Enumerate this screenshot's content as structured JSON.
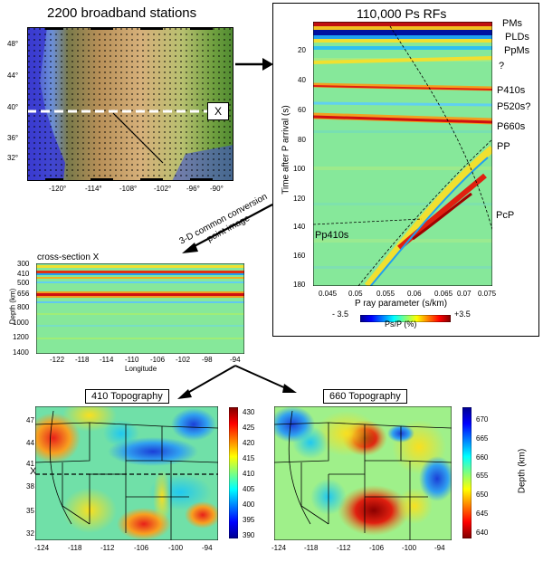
{
  "stations_panel": {
    "title": "2200 broadband stations",
    "xsec_marker": "X",
    "lat_ticks": [
      "48°",
      "44°",
      "40°",
      "36°",
      "32°"
    ],
    "lon_ticks": [
      "-120°",
      "-114°",
      "-108°",
      "-102°",
      "-96°",
      "-90°"
    ]
  },
  "rf_panel": {
    "title": "110,000 Ps RFs",
    "ylabel": "Time after P arrival (s)",
    "xlabel": "P ray parameter (s/km)",
    "y_ticks": [
      "20",
      "40",
      "60",
      "80",
      "100",
      "120",
      "140",
      "160",
      "180"
    ],
    "x_ticks": [
      "0.045",
      "0.05",
      "0.055",
      "0.06",
      "0.065",
      "0.07",
      "0.075"
    ],
    "labels": {
      "pms": "PMs",
      "plds": "PLDs",
      "ppms": "PpMs",
      "q": "?",
      "p410": "P410s",
      "p520": "P520s?",
      "p660": "P660s",
      "pp": "PP",
      "pcp": "PcP",
      "pp410": "Pp410s"
    },
    "colorbar": {
      "min": "- 3.5",
      "max": "+3.5",
      "label": "Ps/P (%)"
    }
  },
  "arrow_label": "3-D common conversion\npoint image",
  "xsection_panel": {
    "title": "cross-section X",
    "ylabel": "Depth (km)",
    "xlabel": "Longitude",
    "y_ticks": [
      "300",
      "410",
      "500",
      "656",
      "800",
      "1000",
      "1200",
      "1400"
    ],
    "x_ticks": [
      "-122",
      "-118",
      "-114",
      "-110",
      "-106",
      "-102",
      "-98",
      "-94"
    ]
  },
  "topo410_panel": {
    "title": "410 Topography",
    "marker": "X",
    "lat_ticks": [
      "47",
      "44",
      "41",
      "38",
      "35",
      "32"
    ],
    "lon_ticks": [
      "-124",
      "-118",
      "-112",
      "-106",
      "-100",
      "-94"
    ],
    "colorbar_ticks": [
      "430",
      "425",
      "420",
      "415",
      "410",
      "405",
      "400",
      "395",
      "390"
    ]
  },
  "topo660_panel": {
    "title": "660 Topography",
    "lon_ticks": [
      "-124",
      "-118",
      "-112",
      "-106",
      "-100",
      "-94"
    ],
    "colorbar_ticks": [
      "670",
      "665",
      "660",
      "655",
      "650",
      "645",
      "640"
    ],
    "colorbar_label": "Depth (km)"
  }
}
